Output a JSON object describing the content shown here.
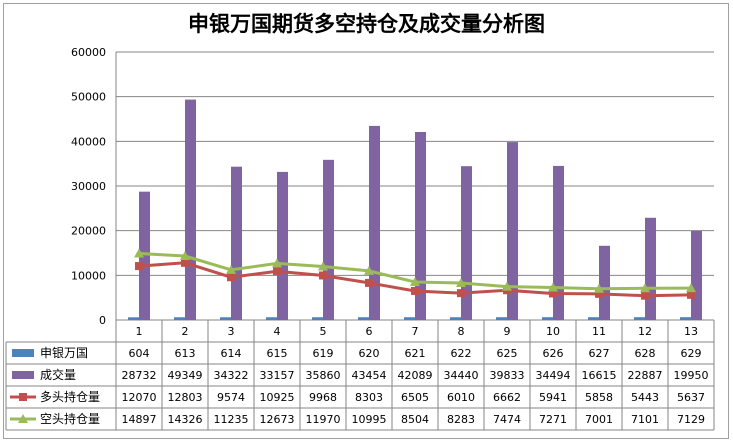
{
  "chart_data": {
    "type": "bar",
    "title": "申银万国期货多空持仓及成交量分析图",
    "categories": [
      "1",
      "2",
      "3",
      "4",
      "5",
      "6",
      "7",
      "8",
      "9",
      "10",
      "11",
      "12",
      "13"
    ],
    "ylim": [
      0,
      60000
    ],
    "yticks": [
      "0",
      "10000",
      "20000",
      "30000",
      "40000",
      "50000",
      "60000"
    ],
    "grid": true,
    "legend_placement": "data-table-left",
    "series": [
      {
        "name": "申银万国",
        "kind": "bar",
        "color": "#4f81bd",
        "values": [
          604,
          613,
          614,
          615,
          619,
          620,
          621,
          622,
          625,
          626,
          627,
          628,
          629
        ]
      },
      {
        "name": "成交量",
        "kind": "bar",
        "color": "#8064a2",
        "values": [
          28732,
          49349,
          34322,
          33157,
          35860,
          43454,
          42089,
          34440,
          39833,
          34494,
          16615,
          22887,
          19950
        ]
      },
      {
        "name": "多头持仓量",
        "kind": "line",
        "color": "#c0504d",
        "marker": "square",
        "values": [
          12070,
          12803,
          9574,
          10925,
          9968,
          8303,
          6505,
          6010,
          6662,
          5941,
          5858,
          5443,
          5637
        ]
      },
      {
        "name": "空头持仓量",
        "kind": "line",
        "color": "#9bbb59",
        "marker": "triangle",
        "values": [
          14897,
          14326,
          11235,
          12673,
          11970,
          10995,
          8504,
          8283,
          7474,
          7271,
          7001,
          7101,
          7129
        ]
      }
    ]
  }
}
